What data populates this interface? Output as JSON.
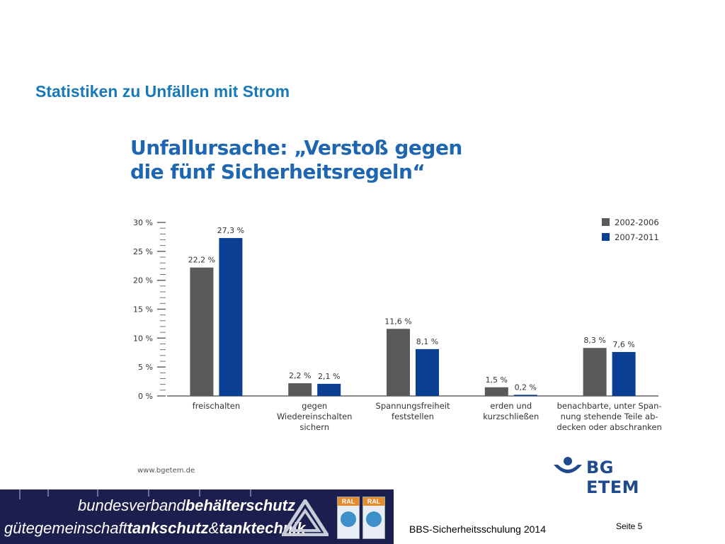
{
  "slide": {
    "title": "Statistiken zu Unfällen mit Strom",
    "footer_text": "BBS-Sicherheitsschulung 2014",
    "page_label": "Seite 5"
  },
  "chart_header": {
    "line1": "Unfallursache: „Verstoß gegen",
    "line2": "die fünf Sicherheitsregeln“"
  },
  "source": "www.bgetem.de",
  "brand": "BG ETEM",
  "banner": {
    "line1_normal": "bundesverband",
    "line1_bold": "behälterschutz",
    "line2_normal": "gütegemeinschaft",
    "line2_bold1": "tankschutz",
    "line2_amp": "&",
    "line2_bold2": "tanktechnik",
    "badge_label": "RAL"
  },
  "colors": {
    "title_blue": "#1878b8",
    "series_grey": "#5a5a5a",
    "series_blue": "#0a3f94",
    "banner_bg": "#1c1f4e"
  },
  "chart_data": {
    "type": "bar",
    "title": "Unfallursache: „Verstoß gegen die fünf Sicherheitsregeln“",
    "categories": [
      [
        "freischalten"
      ],
      [
        "gegen",
        "Wiedereinschalten",
        "sichern"
      ],
      [
        "Spannungsfreiheit",
        "feststellen"
      ],
      [
        "erden und",
        "kurzschließen"
      ],
      [
        "benachbarte, unter Span-",
        "nung stehende Teile ab-",
        "decken oder abschranken"
      ]
    ],
    "series": [
      {
        "name": "2002-2006",
        "color": "#5a5a5a",
        "values": [
          22.2,
          2.2,
          11.6,
          1.5,
          8.3
        ],
        "labels": [
          "22,2 %",
          "2,2 %",
          "11,6 %",
          "1,5 %",
          "8,3 %"
        ]
      },
      {
        "name": "2007-2011",
        "color": "#0a3f94",
        "values": [
          27.3,
          2.1,
          8.1,
          0.2,
          7.6
        ],
        "labels": [
          "27,3 %",
          "2,1 %",
          "8,1 %",
          "0,2 %",
          "7,6 %"
        ]
      }
    ],
    "yticks": [
      "0 %",
      "5 %",
      "10 %",
      "15 %",
      "20 %",
      "25 %",
      "30 %"
    ],
    "ylim": [
      0,
      30
    ],
    "legend_position": "top-right",
    "grid": false
  }
}
